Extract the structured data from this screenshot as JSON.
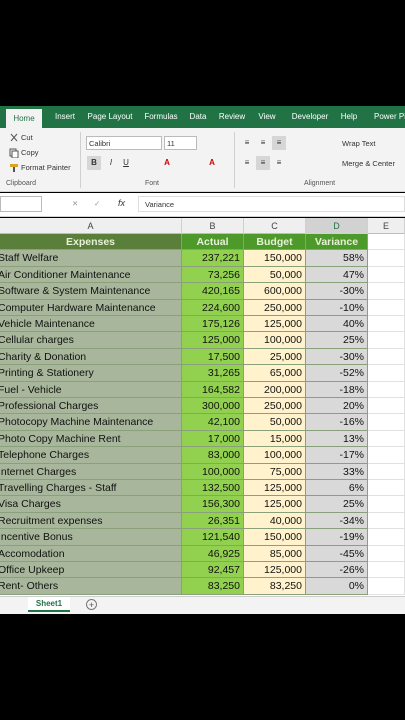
{
  "ribbon": {
    "tabs": [
      "Home",
      "Insert",
      "Page Layout",
      "Formulas",
      "Data",
      "Review",
      "View",
      "Developer",
      "Help",
      "Power Pi"
    ],
    "clipboard": {
      "cut": "Cut",
      "copy": "Copy",
      "format_painter": "Format Painter",
      "label": "Clipboard"
    },
    "font": {
      "name": "Calibri",
      "size": "11",
      "label": "Font"
    },
    "alignment": {
      "wrap_text": "Wrap Text",
      "merge_center": "Merge & Center",
      "label": "Alignment"
    }
  },
  "formula_bar": {
    "content": "Variance"
  },
  "column_headers": [
    "A",
    "B",
    "C",
    "D",
    "E"
  ],
  "table": {
    "header": [
      "Expenses",
      "Actual",
      "Budget",
      "Variance"
    ],
    "rows": [
      [
        "Staff Welfare",
        "237,221",
        "150,000",
        "58%"
      ],
      [
        "Air Conditioner Maintenance",
        "73,256",
        "50,000",
        "47%"
      ],
      [
        "Software & System Maintenance",
        "420,165",
        "600,000",
        "-30%"
      ],
      [
        "Computer Hardware Maintenance",
        "224,600",
        "250,000",
        "-10%"
      ],
      [
        "Vehicle Maintenance",
        "175,126",
        "125,000",
        "40%"
      ],
      [
        "Cellular charges",
        "125,000",
        "100,000",
        "25%"
      ],
      [
        "Charity & Donation",
        "17,500",
        "25,000",
        "-30%"
      ],
      [
        "Printing & Stationery",
        "31,265",
        "65,000",
        "-52%"
      ],
      [
        "Fuel - Vehicle",
        "164,582",
        "200,000",
        "-18%"
      ],
      [
        "Professional Charges",
        "300,000",
        "250,000",
        "20%"
      ],
      [
        "Photocopy Machine Maintenance",
        "42,100",
        "50,000",
        "-16%"
      ],
      [
        "Photo Copy Machine Rent",
        "17,000",
        "15,000",
        "13%"
      ],
      [
        "Telephone Charges",
        "83,000",
        "100,000",
        "-17%"
      ],
      [
        "Internet Charges",
        "100,000",
        "75,000",
        "33%"
      ],
      [
        "Travelling Charges - Staff",
        "132,500",
        "125,000",
        "6%"
      ],
      [
        "Visa Charges",
        "156,300",
        "125,000",
        "25%"
      ],
      [
        "Recruitment expenses",
        "26,351",
        "40,000",
        "-34%"
      ],
      [
        "Incentive Bonus",
        "121,540",
        "150,000",
        "-19%"
      ],
      [
        "Accomodation",
        "46,925",
        "85,000",
        "-45%"
      ],
      [
        "Office Upkeep",
        "92,457",
        "125,000",
        "-26%"
      ],
      [
        "Rent- Others",
        "83,250",
        "83,250",
        "0%"
      ]
    ]
  },
  "sheet_tab": "Sheet1"
}
